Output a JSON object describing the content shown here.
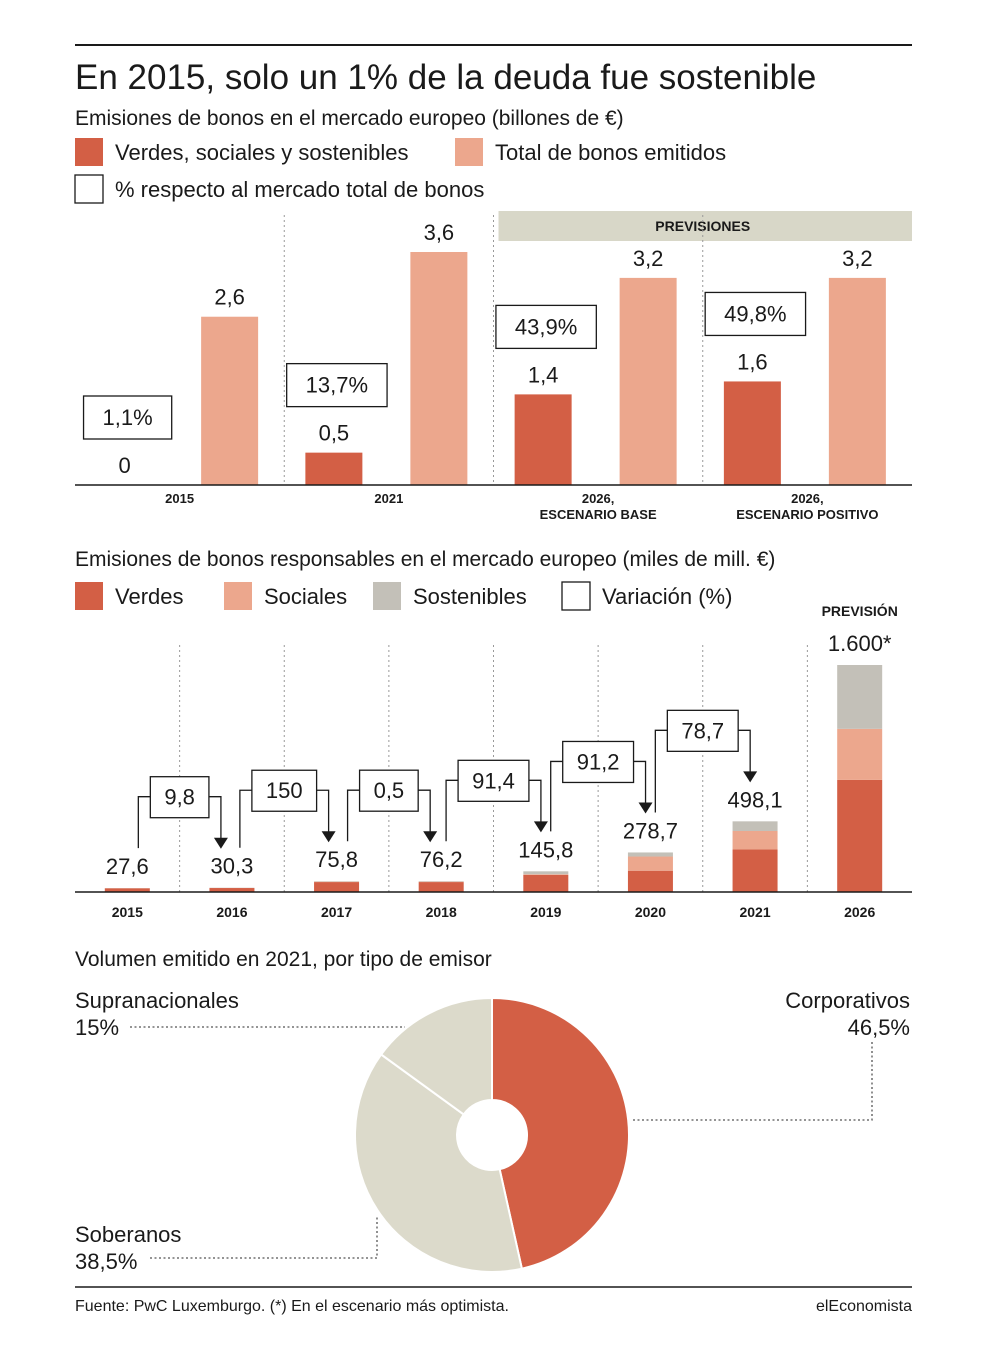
{
  "title": "En 2015, solo un 1% de la deuda fue sostenible",
  "chart_data": [
    {
      "type": "bar",
      "title": "Emisiones de bonos en el mercado europeo (billones de €)",
      "categories": [
        "2015",
        "2021",
        "2026,\nESCENARIO BASE",
        "2026,\nESCENARIO POSITIVO"
      ],
      "series": [
        {
          "name": "Verdes, sociales y sostenibles",
          "color": "#d35f45",
          "values": [
            0,
            0.5,
            1.4,
            1.6
          ],
          "value_labels": [
            "0",
            "0,5",
            "1,4",
            "1,6"
          ]
        },
        {
          "name": "Total de bonos emitidos",
          "color": "#eca78d",
          "values": [
            2.6,
            3.6,
            3.2,
            3.2
          ],
          "value_labels": [
            "2,6",
            "3,6",
            "3,2",
            "3,2"
          ]
        }
      ],
      "percent": {
        "name": "% respecto al mercado total de bonos",
        "values": [
          1.1,
          13.7,
          43.9,
          49.8
        ],
        "value_labels": [
          "1,1%",
          "13,7%",
          "43,9%",
          "49,8%"
        ]
      },
      "annotation": "PREVISIONES"
    },
    {
      "type": "stacked-bar",
      "title": "Emisiones de bonos responsables en el mercado europeo (miles de mill. €)",
      "categories": [
        "2015",
        "2016",
        "2017",
        "2018",
        "2019",
        "2020",
        "2021",
        "2026"
      ],
      "series": [
        {
          "name": "Verdes",
          "color": "#d35f45",
          "values": [
            26,
            28,
            70,
            70,
            120,
            150,
            300,
            790
          ]
        },
        {
          "name": "Sociales",
          "color": "#eca78d",
          "values": [
            1,
            1,
            3,
            3,
            5,
            100,
            130,
            360
          ]
        },
        {
          "name": "Sostenibles",
          "color": "#c3c0b8",
          "values": [
            0.6,
            1.3,
            2.8,
            3.2,
            20.8,
            28.7,
            68.1,
            450
          ]
        }
      ],
      "totals": {
        "values": [
          27.6,
          30.3,
          75.8,
          76.2,
          145.8,
          278.7,
          498.1,
          1600
        ],
        "value_labels": [
          "27,6",
          "30,3",
          "75,8",
          "76,2",
          "145,8",
          "278,7",
          "498,1",
          "1.600*"
        ]
      },
      "variation": {
        "name": "Variación (%)",
        "values": [
          9.8,
          150,
          0.5,
          91.4,
          91.2,
          78.7
        ],
        "value_labels": [
          "9,8",
          "150",
          "0,5",
          "91,4",
          "91,2",
          "78,7"
        ]
      },
      "annotation": "PREVISIÓN"
    },
    {
      "type": "pie",
      "title": "Volumen emitido en 2021, por tipo de emisor",
      "categories": [
        "Corporativos",
        "Soberanos",
        "Supranacionales"
      ],
      "values": [
        46.5,
        38.5,
        15
      ],
      "value_labels": [
        "46,5%",
        "38,5%",
        "15%"
      ],
      "colors": [
        "#d35f45",
        "#dcdacb",
        "#dcdacb"
      ]
    }
  ],
  "footer": {
    "source": "Fuente: PwC Luxemburgo. (*) En el escenario más optimista.",
    "brand": "elEconomista"
  }
}
